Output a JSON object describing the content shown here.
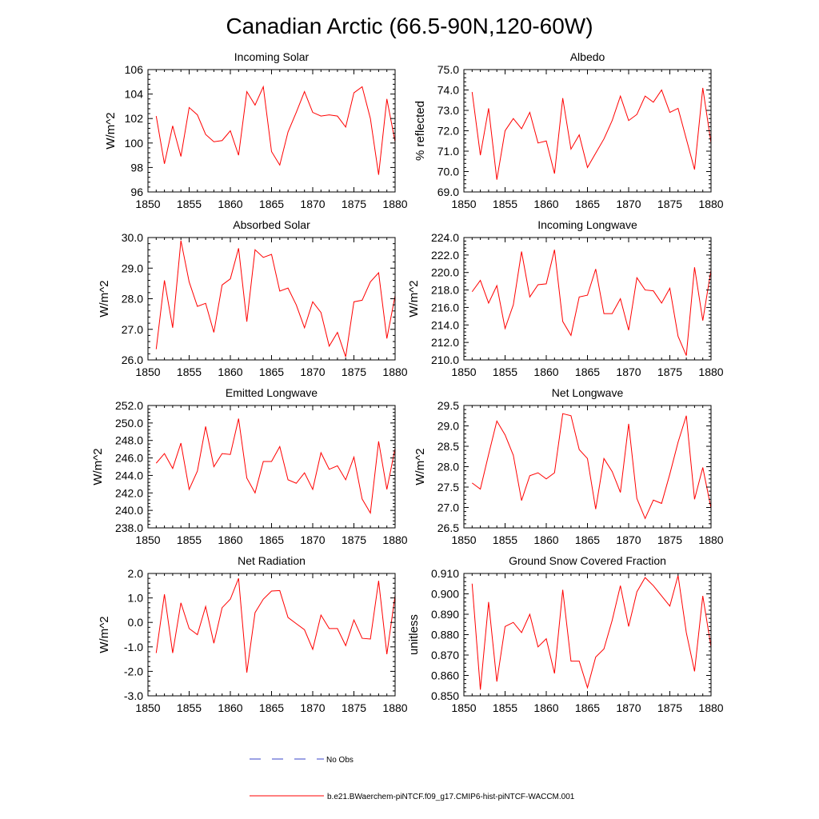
{
  "page_title": "Canadian Arctic (66.5-90N,120-60W)",
  "legend": [
    {
      "label": "No Obs",
      "color": "#3a46c8",
      "style": "dashed"
    },
    {
      "label": "b.e21.BWaerchem-piNTCF.f09_g17.CMIP6-hist-piNTCF-WACCM.001",
      "color": "#ff0000",
      "style": "solid"
    }
  ],
  "chart_data": [
    {
      "type": "line",
      "title": "Incoming Solar",
      "ylabel": "W/m^2",
      "xlim": [
        1850,
        1880
      ],
      "ylim": [
        96,
        106
      ],
      "yticks": [
        "96",
        "98",
        "100",
        "102",
        "104",
        "106"
      ],
      "xticks": [
        "1850",
        "1855",
        "1860",
        "1865",
        "1870",
        "1875",
        "1880"
      ],
      "x": [
        1851,
        1852,
        1853,
        1854,
        1855,
        1856,
        1857,
        1858,
        1859,
        1860,
        1861,
        1862,
        1863,
        1864,
        1865,
        1866,
        1867,
        1868,
        1869,
        1870,
        1871,
        1872,
        1873,
        1874,
        1875,
        1876,
        1877,
        1878,
        1879,
        1880
      ],
      "series": [
        {
          "color": "#ff0000",
          "values": [
            102.2,
            98.3,
            101.4,
            98.9,
            102.9,
            102.3,
            100.7,
            100.1,
            100.2,
            101.0,
            99.0,
            104.2,
            103.1,
            104.6,
            99.3,
            98.2,
            100.9,
            102.5,
            104.2,
            102.5,
            102.2,
            102.3,
            102.2,
            101.3,
            104.1,
            104.6,
            102.0,
            97.4,
            103.6,
            100.1
          ]
        }
      ]
    },
    {
      "type": "line",
      "title": "Albedo",
      "ylabel": "% reflected",
      "xlim": [
        1850,
        1880
      ],
      "ylim": [
        69,
        75
      ],
      "yticks": [
        "69.0",
        "70.0",
        "71.0",
        "72.0",
        "73.0",
        "74.0",
        "75.0"
      ],
      "xticks": [
        "1850",
        "1855",
        "1860",
        "1865",
        "1870",
        "1875",
        "1880"
      ],
      "x": [
        1851,
        1852,
        1853,
        1854,
        1855,
        1856,
        1857,
        1858,
        1859,
        1860,
        1861,
        1862,
        1863,
        1864,
        1865,
        1866,
        1867,
        1868,
        1869,
        1870,
        1871,
        1872,
        1873,
        1874,
        1875,
        1876,
        1877,
        1878,
        1879,
        1880
      ],
      "series": [
        {
          "color": "#ff0000",
          "values": [
            73.9,
            70.8,
            73.1,
            69.6,
            72.0,
            72.6,
            72.1,
            72.9,
            71.4,
            71.5,
            69.9,
            73.6,
            71.1,
            71.8,
            70.2,
            70.9,
            71.6,
            72.5,
            73.7,
            72.5,
            72.8,
            73.7,
            73.4,
            74.0,
            72.9,
            73.1,
            71.6,
            70.1,
            74.1,
            71.4
          ]
        }
      ]
    },
    {
      "type": "line",
      "title": "Absorbed Solar",
      "ylabel": "W/m^2",
      "xlim": [
        1850,
        1880
      ],
      "ylim": [
        26,
        30
      ],
      "yticks": [
        "26.0",
        "27.0",
        "28.0",
        "29.0",
        "30.0"
      ],
      "xticks": [
        "1850",
        "1855",
        "1860",
        "1865",
        "1870",
        "1875",
        "1880"
      ],
      "x": [
        1851,
        1852,
        1853,
        1854,
        1855,
        1856,
        1857,
        1858,
        1859,
        1860,
        1861,
        1862,
        1863,
        1864,
        1865,
        1866,
        1867,
        1868,
        1869,
        1870,
        1871,
        1872,
        1873,
        1874,
        1875,
        1876,
        1877,
        1878,
        1879,
        1880
      ],
      "series": [
        {
          "color": "#ff0000",
          "values": [
            26.35,
            28.6,
            27.05,
            29.9,
            28.55,
            27.75,
            27.85,
            26.9,
            28.45,
            28.65,
            29.65,
            27.25,
            29.6,
            29.35,
            29.45,
            28.25,
            28.35,
            27.8,
            27.05,
            27.9,
            27.55,
            26.45,
            26.9,
            26.1,
            27.9,
            27.95,
            28.55,
            28.85,
            26.7,
            28.1
          ]
        }
      ]
    },
    {
      "type": "line",
      "title": "Incoming Longwave",
      "ylabel": "W/m^2",
      "xlim": [
        1850,
        1880
      ],
      "ylim": [
        210,
        224
      ],
      "yticks": [
        "210.0",
        "212.0",
        "214.0",
        "216.0",
        "218.0",
        "220.0",
        "222.0",
        "224.0"
      ],
      "xticks": [
        "1850",
        "1855",
        "1860",
        "1865",
        "1870",
        "1875",
        "1880"
      ],
      "x": [
        1851,
        1852,
        1853,
        1854,
        1855,
        1856,
        1857,
        1858,
        1859,
        1860,
        1861,
        1862,
        1863,
        1864,
        1865,
        1866,
        1867,
        1868,
        1869,
        1870,
        1871,
        1872,
        1873,
        1874,
        1875,
        1876,
        1877,
        1878,
        1879,
        1880
      ],
      "series": [
        {
          "color": "#ff0000",
          "values": [
            217.8,
            219.1,
            216.5,
            218.5,
            213.6,
            216.3,
            222.4,
            217.2,
            218.6,
            218.7,
            222.6,
            214.4,
            212.8,
            217.2,
            217.4,
            220.4,
            215.3,
            215.3,
            217.0,
            213.4,
            219.4,
            218.0,
            217.9,
            216.5,
            218.2,
            212.7,
            210.5,
            220.6,
            214.5,
            220.3
          ]
        }
      ]
    },
    {
      "type": "line",
      "title": "Emitted Longwave",
      "ylabel": "W/m^2",
      "xlim": [
        1850,
        1880
      ],
      "ylim": [
        238,
        252
      ],
      "yticks": [
        "238.0",
        "240.0",
        "242.0",
        "244.0",
        "246.0",
        "248.0",
        "250.0",
        "252.0"
      ],
      "xticks": [
        "1850",
        "1855",
        "1860",
        "1865",
        "1870",
        "1875",
        "1880"
      ],
      "x": [
        1851,
        1852,
        1853,
        1854,
        1855,
        1856,
        1857,
        1858,
        1859,
        1860,
        1861,
        1862,
        1863,
        1864,
        1865,
        1866,
        1867,
        1868,
        1869,
        1870,
        1871,
        1872,
        1873,
        1874,
        1875,
        1876,
        1877,
        1878,
        1879,
        1880
      ],
      "series": [
        {
          "color": "#ff0000",
          "values": [
            245.4,
            246.5,
            244.8,
            247.7,
            242.4,
            244.5,
            249.6,
            245.0,
            246.5,
            246.4,
            250.5,
            243.7,
            242.0,
            245.6,
            245.6,
            247.3,
            243.5,
            243.1,
            244.3,
            242.4,
            246.6,
            244.7,
            245.1,
            243.5,
            246.1,
            241.3,
            239.7,
            247.9,
            242.4,
            247.1
          ]
        }
      ]
    },
    {
      "type": "line",
      "title": "Net Longwave",
      "ylabel": "W/m^2",
      "xlim": [
        1850,
        1880
      ],
      "ylim": [
        26.5,
        29.5
      ],
      "yticks": [
        "26.5",
        "27.0",
        "27.5",
        "28.0",
        "28.5",
        "29.0",
        "29.5"
      ],
      "xticks": [
        "1850",
        "1855",
        "1860",
        "1865",
        "1870",
        "1875",
        "1880"
      ],
      "x": [
        1851,
        1852,
        1853,
        1854,
        1855,
        1856,
        1857,
        1858,
        1859,
        1860,
        1861,
        1862,
        1863,
        1864,
        1865,
        1866,
        1867,
        1868,
        1869,
        1870,
        1871,
        1872,
        1873,
        1874,
        1875,
        1876,
        1877,
        1878,
        1879,
        1880
      ],
      "series": [
        {
          "color": "#ff0000",
          "values": [
            27.6,
            27.45,
            28.3,
            29.12,
            28.78,
            28.28,
            27.17,
            27.78,
            27.85,
            27.7,
            27.85,
            29.3,
            29.25,
            28.42,
            28.2,
            26.96,
            28.2,
            27.88,
            27.37,
            29.05,
            27.22,
            26.73,
            27.18,
            27.1,
            27.82,
            28.6,
            29.25,
            27.2,
            27.98,
            26.98
          ]
        }
      ]
    },
    {
      "type": "line",
      "title": "Net Radiation",
      "ylabel": "W/m^2",
      "xlim": [
        1850,
        1880
      ],
      "ylim": [
        -3,
        2
      ],
      "yticks": [
        "-3.0",
        "-2.0",
        "-1.0",
        "0.0",
        "1.0",
        "2.0"
      ],
      "xticks": [
        "1850",
        "1855",
        "1860",
        "1865",
        "1870",
        "1875",
        "1880"
      ],
      "x": [
        1851,
        1852,
        1853,
        1854,
        1855,
        1856,
        1857,
        1858,
        1859,
        1860,
        1861,
        1862,
        1863,
        1864,
        1865,
        1866,
        1867,
        1868,
        1869,
        1870,
        1871,
        1872,
        1873,
        1874,
        1875,
        1876,
        1877,
        1878,
        1879,
        1880
      ],
      "series": [
        {
          "color": "#ff0000",
          "values": [
            -1.25,
            1.15,
            -1.25,
            0.8,
            -0.25,
            -0.5,
            0.65,
            -0.85,
            0.6,
            0.95,
            1.8,
            -2.05,
            0.4,
            0.95,
            1.28,
            1.3,
            0.2,
            -0.05,
            -0.3,
            -1.1,
            0.3,
            -0.25,
            -0.25,
            -0.95,
            0.1,
            -0.65,
            -0.68,
            1.7,
            -1.3,
            1.1
          ]
        }
      ]
    },
    {
      "type": "line",
      "title": "Ground Snow Covered Fraction",
      "ylabel": "unitless",
      "xlim": [
        1850,
        1880
      ],
      "ylim": [
        0.85,
        0.91
      ],
      "yticks": [
        "0.850",
        "0.860",
        "0.870",
        "0.880",
        "0.890",
        "0.900",
        "0.910"
      ],
      "xticks": [
        "1850",
        "1855",
        "1860",
        "1865",
        "1870",
        "1875",
        "1880"
      ],
      "x": [
        1851,
        1852,
        1853,
        1854,
        1855,
        1856,
        1857,
        1858,
        1859,
        1860,
        1861,
        1862,
        1863,
        1864,
        1865,
        1866,
        1867,
        1868,
        1869,
        1870,
        1871,
        1872,
        1873,
        1874,
        1875,
        1876,
        1877,
        1878,
        1879,
        1880
      ],
      "series": [
        {
          "color": "#ff0000",
          "values": [
            0.905,
            0.853,
            0.896,
            0.857,
            0.884,
            0.886,
            0.881,
            0.89,
            0.874,
            0.878,
            0.861,
            0.902,
            0.867,
            0.867,
            0.854,
            0.869,
            0.873,
            0.887,
            0.904,
            0.884,
            0.901,
            0.908,
            0.904,
            0.899,
            0.894,
            0.909,
            0.881,
            0.862,
            0.899,
            0.874
          ]
        }
      ]
    }
  ]
}
